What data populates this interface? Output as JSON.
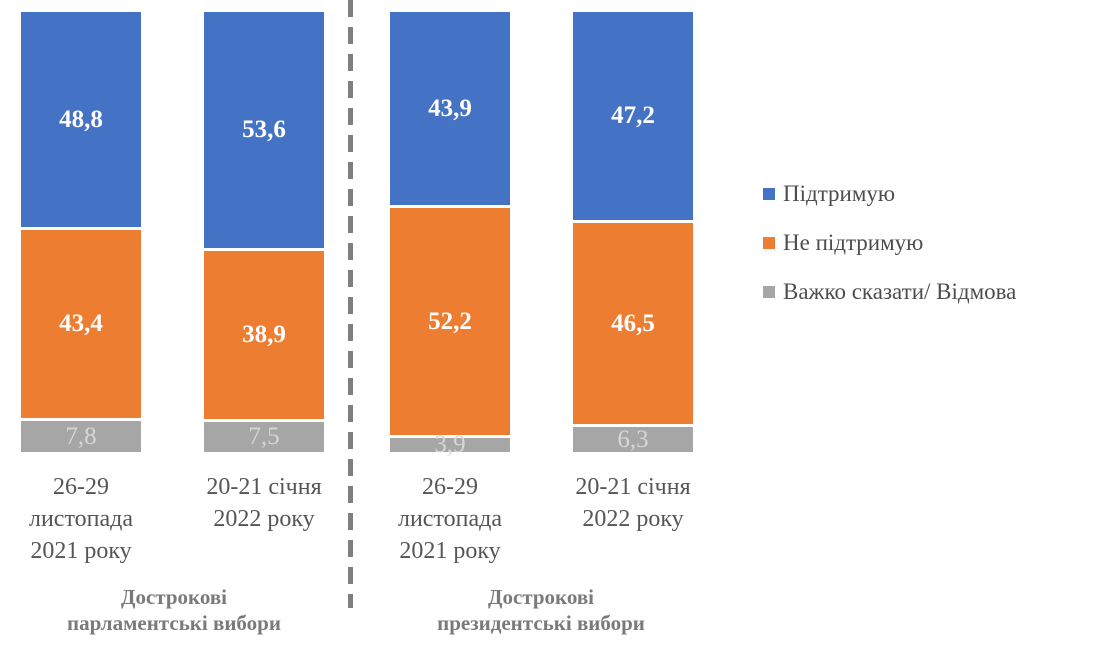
{
  "chart_data": {
    "type": "bar",
    "stacked": true,
    "orientation": "vertical",
    "unit": "percent",
    "value_range": [
      0,
      100
    ],
    "grid": false,
    "legend_position": "right",
    "categories": [
      "26-29\nлистопада\n2021 року",
      "20-21 січня\n2022 року",
      "26-29\nлистопада\n2021 року",
      "20-21 січня\n2022 року"
    ],
    "groups": [
      {
        "label": "Дострокові\nпарламентські вибори"
      },
      {
        "label": "Дострокові\nпрезидентські вибори"
      }
    ],
    "series": [
      {
        "name": "Підтримую",
        "color": "#4472C4",
        "values": [
          48.8,
          53.6,
          43.9,
          47.2
        ],
        "labels": [
          "48,8",
          "53,6",
          "43,9",
          "47,2"
        ],
        "label_color": "#FFFFFF",
        "label_bold": true
      },
      {
        "name": "Не підтримую",
        "color": "#ED7D31",
        "values": [
          43.4,
          38.9,
          52.2,
          46.5
        ],
        "labels": [
          "43,4",
          "38,9",
          "52,2",
          "46,5"
        ],
        "label_color": "#FFFFFF",
        "label_bold": true
      },
      {
        "name": "Важко сказати/ Відмова",
        "color": "#A6A6A6",
        "values": [
          7.8,
          7.5,
          3.9,
          6.3
        ],
        "labels": [
          "7,8",
          "7,5",
          "3,9",
          "6,3"
        ],
        "label_color": "#D6D6D6",
        "label_bold": false
      }
    ],
    "divider": {
      "style": "dashed",
      "color": "#7F7F7F"
    }
  }
}
